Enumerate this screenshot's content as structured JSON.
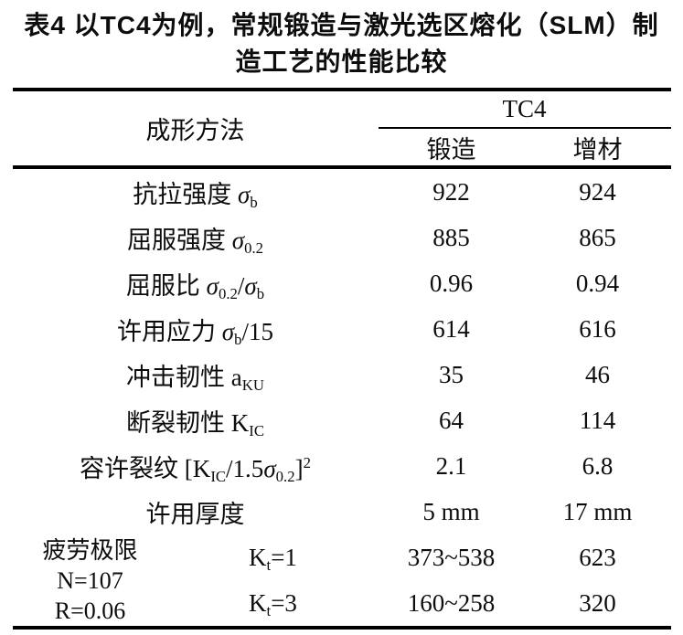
{
  "title": {
    "lines": [
      "表4  以TC4为例，常规锻造与激光选区熔化（SLM）制",
      "造工艺的性能比较"
    ]
  },
  "table": {
    "header": {
      "method": "成形方法",
      "group": "TC4",
      "col_forging": "锻造",
      "col_additive": "增材"
    },
    "rows": [
      {
        "label": [
          {
            "t": "抗拉强度 "
          },
          {
            "t": "σ",
            "i": true
          },
          {
            "t": "b",
            "s": "sub"
          }
        ],
        "values": [
          "922",
          "924"
        ]
      },
      {
        "label": [
          {
            "t": "屈服强度 "
          },
          {
            "t": "σ",
            "i": true
          },
          {
            "t": "0.2",
            "s": "sub"
          }
        ],
        "values": [
          "885",
          "865"
        ]
      },
      {
        "label": [
          {
            "t": "屈服比 "
          },
          {
            "t": "σ",
            "i": true
          },
          {
            "t": "0.2",
            "s": "sub"
          },
          {
            "t": "/"
          },
          {
            "t": "σ",
            "i": true
          },
          {
            "t": "b",
            "s": "sub"
          }
        ],
        "values": [
          "0.96",
          "0.94"
        ]
      },
      {
        "label": [
          {
            "t": "许用应力 "
          },
          {
            "t": "σ",
            "i": true
          },
          {
            "t": "b",
            "s": "sub"
          },
          {
            "t": "/15"
          }
        ],
        "values": [
          "614",
          "616"
        ]
      },
      {
        "label": [
          {
            "t": "冲击韧性 a"
          },
          {
            "t": "KU",
            "s": "sub"
          }
        ],
        "values": [
          "35",
          "46"
        ]
      },
      {
        "label": [
          {
            "t": "断裂韧性 K"
          },
          {
            "t": "IC",
            "s": "sub"
          }
        ],
        "values": [
          "64",
          "114"
        ]
      },
      {
        "label": [
          {
            "t": "容许裂纹 [K"
          },
          {
            "t": "IC",
            "s": "sub"
          },
          {
            "t": "/1.5"
          },
          {
            "t": "σ",
            "i": true
          },
          {
            "t": "0.2",
            "s": "sub"
          },
          {
            "t": "]"
          },
          {
            "t": "2",
            "s": "sup"
          }
        ],
        "values": [
          "2.1",
          "6.8"
        ]
      },
      {
        "label": [
          {
            "t": "许用厚度"
          }
        ],
        "values": [
          "5 mm",
          "17 mm"
        ]
      }
    ],
    "fatigue": {
      "desc_lines": [
        "疲劳极限",
        "N=107",
        "R=0.06"
      ],
      "subrows": [
        {
          "kt": [
            {
              "t": "K"
            },
            {
              "t": "t",
              "s": "sub"
            },
            {
              "t": "=1"
            }
          ],
          "values": [
            "373~538",
            "623"
          ]
        },
        {
          "kt": [
            {
              "t": "K"
            },
            {
              "t": "t",
              "s": "sub"
            },
            {
              "t": "=3"
            }
          ],
          "values": [
            "160~258",
            "320"
          ]
        }
      ]
    }
  },
  "colors": {
    "text": "#0d0d0d",
    "rule": "#000000",
    "background": "#ffffff"
  }
}
